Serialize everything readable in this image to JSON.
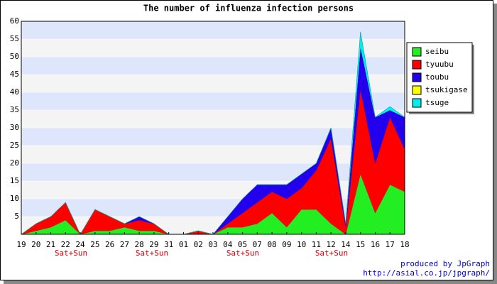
{
  "chart_data": {
    "type": "stacked_area",
    "title": "The number of influenza infection persons",
    "categories": [
      "19",
      "20",
      "21",
      "22",
      "24",
      "25",
      "26",
      "27",
      "28",
      "29",
      "31",
      "01",
      "02",
      "03",
      "04",
      "05",
      "07",
      "08",
      "09",
      "10",
      "11",
      "12",
      "14",
      "15",
      "16",
      "17",
      "18"
    ],
    "annotations": [
      "Sat+Sun",
      "Sat+Sun",
      "Sat+Sun",
      "Sat+Sun"
    ],
    "series": [
      {
        "name": "seibu",
        "color": "#22ee22",
        "values": [
          0,
          1,
          2,
          4,
          0,
          1,
          1,
          2,
          1,
          1,
          0,
          0,
          0,
          0,
          2,
          2,
          3,
          6,
          2,
          7,
          7,
          3,
          0,
          17,
          6,
          14,
          12
        ]
      },
      {
        "name": "tyuubu",
        "color": "#ff0000",
        "values": [
          0,
          2,
          3,
          5,
          0,
          6,
          4,
          1,
          3,
          2,
          0,
          0,
          1,
          0,
          1,
          4,
          6,
          6,
          8,
          6,
          11,
          24,
          2,
          24,
          14,
          19,
          12
        ]
      },
      {
        "name": "toubu",
        "color": "#2200ee",
        "values": [
          0,
          0,
          0,
          0,
          0,
          0,
          0,
          0,
          1,
          0,
          0,
          0,
          0,
          0,
          2,
          4,
          5,
          2,
          4,
          4,
          2,
          3,
          1,
          12,
          13,
          2,
          9
        ]
      },
      {
        "name": "tsukigase",
        "color": "#ffff00",
        "values": [
          0,
          0,
          0,
          0,
          0,
          0,
          0,
          0,
          0,
          0,
          0,
          0,
          0,
          0,
          0,
          0,
          0,
          0,
          0,
          0,
          0,
          0,
          0,
          0,
          0,
          0,
          0
        ]
      },
      {
        "name": "tsuge",
        "color": "#00eeee",
        "values": [
          0,
          0,
          0,
          0,
          0,
          0,
          0,
          0,
          0,
          0,
          0,
          0,
          0,
          0,
          0,
          0,
          0,
          0,
          0,
          0,
          0,
          0,
          0,
          4,
          0,
          1,
          0
        ]
      }
    ],
    "ylim": [
      0,
      60
    ],
    "yticks": [
      5,
      10,
      15,
      20,
      25,
      30,
      35,
      40,
      45,
      50,
      55,
      60
    ],
    "footer": [
      "produced by JpGraph",
      "http://asial.co.jp/jpgraph/"
    ]
  }
}
